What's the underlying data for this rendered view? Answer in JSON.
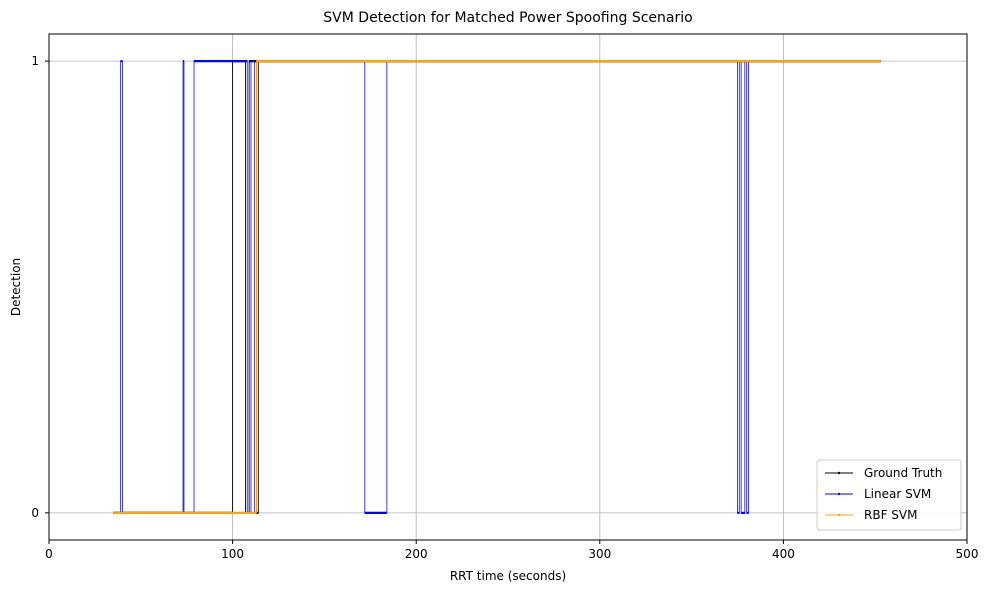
{
  "chart_data": {
    "type": "line",
    "title": "SVM Detection for Matched Power Spoofing Scenario",
    "xlabel": "RRT time (seconds)",
    "ylabel": "Detection",
    "xlim": [
      0,
      500
    ],
    "ylim": [
      -0.06,
      1.06
    ],
    "xticks": [
      0,
      100,
      200,
      300,
      400,
      500
    ],
    "xtick_labels": [
      "0",
      "100",
      "200",
      "300",
      "400",
      "500"
    ],
    "yticks": [
      0,
      1
    ],
    "ytick_labels": [
      "0",
      "1"
    ],
    "grid": true,
    "legend_position": "bottom-right",
    "series": [
      {
        "name": "Ground Truth",
        "color": "#000000",
        "steps": [
          [
            35,
            0
          ],
          [
            100,
            0
          ],
          [
            100,
            1
          ],
          [
            107,
            1
          ],
          [
            107,
            0
          ],
          [
            109,
            0
          ],
          [
            109,
            1
          ],
          [
            113,
            1
          ],
          [
            113,
            0
          ],
          [
            114,
            0
          ],
          [
            114,
            1
          ],
          [
            453,
            1
          ]
        ]
      },
      {
        "name": "Linear SVM",
        "color": "#0000ff",
        "steps": [
          [
            35,
            0
          ],
          [
            39,
            0
          ],
          [
            39,
            1
          ],
          [
            40,
            1
          ],
          [
            40,
            0
          ],
          [
            73,
            0
          ],
          [
            73,
            1
          ],
          [
            73.5,
            1
          ],
          [
            73.5,
            0
          ],
          [
            79,
            0
          ],
          [
            79,
            1
          ],
          [
            108,
            1
          ],
          [
            108,
            0
          ],
          [
            110,
            0
          ],
          [
            110,
            1
          ],
          [
            112,
            1
          ],
          [
            112,
            0
          ],
          [
            113,
            0
          ],
          [
            113,
            1
          ],
          [
            172,
            1
          ],
          [
            172,
            0
          ],
          [
            184,
            0
          ],
          [
            184,
            1
          ],
          [
            375,
            1
          ],
          [
            375,
            0
          ],
          [
            376,
            0
          ],
          [
            376,
            1
          ],
          [
            377,
            1
          ],
          [
            377,
            0
          ],
          [
            379,
            0
          ],
          [
            379,
            1
          ],
          [
            380,
            1
          ],
          [
            380,
            0
          ],
          [
            381,
            0
          ],
          [
            381,
            1
          ],
          [
            453,
            1
          ]
        ]
      },
      {
        "name": "RBF SVM",
        "color": "#ffa500",
        "steps": [
          [
            35,
            0
          ],
          [
            113,
            0
          ],
          [
            113,
            1
          ],
          [
            453,
            1
          ]
        ]
      }
    ]
  }
}
